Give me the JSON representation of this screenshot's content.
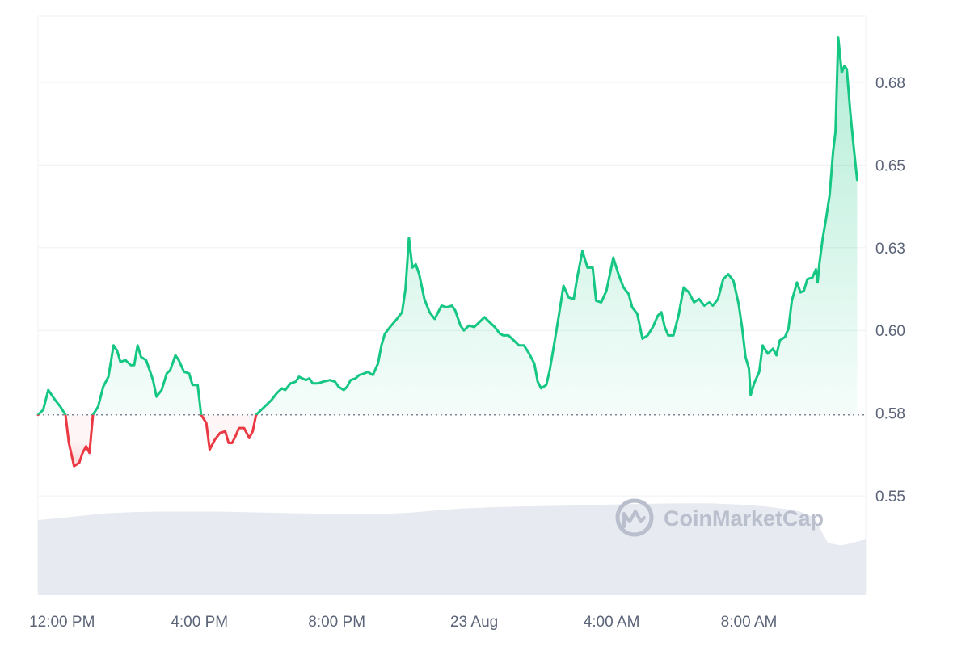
{
  "watermark": {
    "text": "CoinMarketCap",
    "icon": "coinmarketcap-logo-icon"
  },
  "colors": {
    "up": "#16c784",
    "down": "#ea3943",
    "grid": "#eef0f3",
    "baseline": "#7d8595",
    "volume": "#e7eaf0",
    "axis_text": "#5b6478"
  },
  "chart_data": {
    "type": "area",
    "title": "",
    "xlabel": "",
    "ylabel": "",
    "ylim": [
      0.52,
      0.695
    ],
    "y_ticks": [
      "0.55",
      "0.58",
      "0.60",
      "0.63",
      "0.65",
      "0.68"
    ],
    "y_tick_values": [
      0.55,
      0.575,
      0.6,
      0.625,
      0.65,
      0.675
    ],
    "x_ticks": [
      "12:00 PM",
      "4:00 PM",
      "8:00 PM",
      "23 Aug",
      "4:00 AM",
      "8:00 AM"
    ],
    "x_tick_hours": [
      12,
      16,
      20,
      24,
      28,
      32
    ],
    "x_range_hours": [
      11.3,
      35.4
    ],
    "baseline": 0.5745,
    "grid": true,
    "series": [
      {
        "type": "line",
        "points": [
          [
            11.3,
            0.5745
          ],
          [
            11.45,
            0.576
          ],
          [
            11.6,
            0.582
          ],
          [
            11.8,
            0.579
          ],
          [
            11.95,
            0.577
          ],
          [
            12.1,
            0.5745
          ],
          [
            12.2,
            0.566
          ],
          [
            12.35,
            0.559
          ],
          [
            12.5,
            0.56
          ],
          [
            12.6,
            0.563
          ],
          [
            12.7,
            0.565
          ],
          [
            12.8,
            0.563
          ],
          [
            12.9,
            0.5745
          ],
          [
            13.05,
            0.577
          ],
          [
            13.2,
            0.583
          ],
          [
            13.35,
            0.586
          ],
          [
            13.5,
            0.5955
          ],
          [
            13.6,
            0.594
          ],
          [
            13.7,
            0.5905
          ],
          [
            13.85,
            0.591
          ],
          [
            14.0,
            0.5895
          ],
          [
            14.1,
            0.5895
          ],
          [
            14.2,
            0.5955
          ],
          [
            14.3,
            0.592
          ],
          [
            14.45,
            0.591
          ],
          [
            14.55,
            0.588
          ],
          [
            14.65,
            0.585
          ],
          [
            14.75,
            0.58
          ],
          [
            14.9,
            0.582
          ],
          [
            15.05,
            0.587
          ],
          [
            15.15,
            0.588
          ],
          [
            15.3,
            0.5925
          ],
          [
            15.4,
            0.591
          ],
          [
            15.55,
            0.5875
          ],
          [
            15.7,
            0.587
          ],
          [
            15.8,
            0.5835
          ],
          [
            15.95,
            0.5835
          ],
          [
            16.05,
            0.5745
          ],
          [
            16.2,
            0.572
          ],
          [
            16.3,
            0.564
          ],
          [
            16.45,
            0.567
          ],
          [
            16.6,
            0.569
          ],
          [
            16.75,
            0.5695
          ],
          [
            16.85,
            0.566
          ],
          [
            16.95,
            0.566
          ],
          [
            17.05,
            0.568
          ],
          [
            17.15,
            0.5705
          ],
          [
            17.3,
            0.5705
          ],
          [
            17.45,
            0.5675
          ],
          [
            17.55,
            0.5695
          ],
          [
            17.65,
            0.5745
          ],
          [
            17.8,
            0.576
          ],
          [
            17.95,
            0.5775
          ],
          [
            18.1,
            0.579
          ],
          [
            18.25,
            0.581
          ],
          [
            18.4,
            0.5825
          ],
          [
            18.5,
            0.582
          ],
          [
            18.65,
            0.584
          ],
          [
            18.8,
            0.5845
          ],
          [
            18.9,
            0.586
          ],
          [
            19.1,
            0.585
          ],
          [
            19.2,
            0.5855
          ],
          [
            19.3,
            0.584
          ],
          [
            19.45,
            0.584
          ],
          [
            19.6,
            0.5845
          ],
          [
            19.8,
            0.585
          ],
          [
            19.95,
            0.5845
          ],
          [
            20.05,
            0.583
          ],
          [
            20.2,
            0.582
          ],
          [
            20.3,
            0.583
          ],
          [
            20.4,
            0.585
          ],
          [
            20.55,
            0.5855
          ],
          [
            20.65,
            0.5865
          ],
          [
            20.8,
            0.587
          ],
          [
            20.9,
            0.5875
          ],
          [
            21.05,
            0.5865
          ],
          [
            21.2,
            0.59
          ],
          [
            21.3,
            0.5955
          ],
          [
            21.4,
            0.599
          ],
          [
            21.55,
            0.601
          ],
          [
            21.75,
            0.6035
          ],
          [
            21.9,
            0.6055
          ],
          [
            22.0,
            0.6125
          ],
          [
            22.1,
            0.628
          ],
          [
            22.2,
            0.619
          ],
          [
            22.3,
            0.62
          ],
          [
            22.4,
            0.617
          ],
          [
            22.55,
            0.6095
          ],
          [
            22.7,
            0.6055
          ],
          [
            22.85,
            0.6035
          ],
          [
            22.95,
            0.6055
          ],
          [
            23.05,
            0.6075
          ],
          [
            23.2,
            0.607
          ],
          [
            23.35,
            0.6075
          ],
          [
            23.45,
            0.606
          ],
          [
            23.6,
            0.6015
          ],
          [
            23.7,
            0.6
          ],
          [
            23.85,
            0.6015
          ],
          [
            24.0,
            0.601
          ],
          [
            24.15,
            0.6025
          ],
          [
            24.3,
            0.604
          ],
          [
            24.45,
            0.6025
          ],
          [
            24.6,
            0.601
          ],
          [
            24.75,
            0.599
          ],
          [
            24.85,
            0.5985
          ],
          [
            25.0,
            0.5985
          ],
          [
            25.15,
            0.597
          ],
          [
            25.3,
            0.5955
          ],
          [
            25.45,
            0.5955
          ],
          [
            25.6,
            0.593
          ],
          [
            25.75,
            0.59
          ],
          [
            25.85,
            0.5845
          ],
          [
            25.95,
            0.5825
          ],
          [
            26.1,
            0.5835
          ],
          [
            26.2,
            0.588
          ],
          [
            26.3,
            0.594
          ],
          [
            26.45,
            0.6035
          ],
          [
            26.6,
            0.6135
          ],
          [
            26.75,
            0.61
          ],
          [
            26.9,
            0.6095
          ],
          [
            27.0,
            0.616
          ],
          [
            27.15,
            0.624
          ],
          [
            27.3,
            0.619
          ],
          [
            27.45,
            0.619
          ],
          [
            27.55,
            0.609
          ],
          [
            27.7,
            0.6085
          ],
          [
            27.85,
            0.612
          ],
          [
            27.95,
            0.617
          ],
          [
            28.05,
            0.622
          ],
          [
            28.2,
            0.617
          ],
          [
            28.35,
            0.613
          ],
          [
            28.5,
            0.611
          ],
          [
            28.6,
            0.607
          ],
          [
            28.75,
            0.605
          ],
          [
            28.9,
            0.5975
          ],
          [
            29.05,
            0.5985
          ],
          [
            29.2,
            0.601
          ],
          [
            29.35,
            0.6045
          ],
          [
            29.45,
            0.6055
          ],
          [
            29.55,
            0.601
          ],
          [
            29.65,
            0.5985
          ],
          [
            29.8,
            0.5985
          ],
          [
            29.95,
            0.6045
          ],
          [
            30.1,
            0.613
          ],
          [
            30.25,
            0.6115
          ],
          [
            30.4,
            0.6085
          ],
          [
            30.55,
            0.6095
          ],
          [
            30.7,
            0.6075
          ],
          [
            30.85,
            0.6085
          ],
          [
            30.95,
            0.6075
          ],
          [
            31.1,
            0.6095
          ],
          [
            31.25,
            0.6155
          ],
          [
            31.4,
            0.617
          ],
          [
            31.55,
            0.615
          ],
          [
            31.7,
            0.608
          ],
          [
            31.8,
            0.601
          ],
          [
            31.9,
            0.592
          ],
          [
            32.0,
            0.5885
          ],
          [
            32.05,
            0.5805
          ],
          [
            32.15,
            0.584
          ],
          [
            32.3,
            0.5875
          ],
          [
            32.4,
            0.5955
          ],
          [
            32.55,
            0.593
          ],
          [
            32.7,
            0.5945
          ],
          [
            32.8,
            0.5925
          ],
          [
            32.9,
            0.597
          ],
          [
            33.05,
            0.598
          ],
          [
            33.15,
            0.6005
          ],
          [
            33.25,
            0.609
          ],
          [
            33.4,
            0.6145
          ],
          [
            33.5,
            0.6115
          ],
          [
            33.6,
            0.612
          ],
          [
            33.7,
            0.6155
          ],
          [
            33.85,
            0.616
          ],
          [
            33.95,
            0.6185
          ],
          [
            34.0,
            0.6145
          ],
          [
            34.05,
            0.62
          ],
          [
            34.15,
            0.628
          ],
          [
            34.25,
            0.634
          ],
          [
            34.35,
            0.641
          ],
          [
            34.45,
            0.654
          ],
          [
            34.52,
            0.66
          ],
          [
            34.6,
            0.6885
          ],
          [
            34.7,
            0.678
          ],
          [
            34.78,
            0.68
          ],
          [
            34.85,
            0.679
          ],
          [
            34.95,
            0.666
          ],
          [
            35.05,
            0.6555
          ],
          [
            35.15,
            0.6455
          ]
        ]
      },
      {
        "type": "volume",
        "points": [
          [
            11.3,
            0.31
          ],
          [
            11.9,
            0.318
          ],
          [
            12.6,
            0.328
          ],
          [
            13.3,
            0.338
          ],
          [
            14.1,
            0.343
          ],
          [
            14.9,
            0.345
          ],
          [
            15.7,
            0.345
          ],
          [
            16.5,
            0.345
          ],
          [
            17.3,
            0.343
          ],
          [
            18.1,
            0.34
          ],
          [
            18.9,
            0.338
          ],
          [
            19.7,
            0.336
          ],
          [
            20.5,
            0.335
          ],
          [
            21.3,
            0.335
          ],
          [
            22.1,
            0.34
          ],
          [
            22.9,
            0.35
          ],
          [
            23.7,
            0.358
          ],
          [
            24.5,
            0.363
          ],
          [
            25.3,
            0.366
          ],
          [
            26.1,
            0.368
          ],
          [
            26.9,
            0.37
          ],
          [
            27.7,
            0.373
          ],
          [
            28.5,
            0.376
          ],
          [
            29.3,
            0.378
          ],
          [
            30.1,
            0.379
          ],
          [
            30.9,
            0.379
          ],
          [
            31.7,
            0.374
          ],
          [
            32.5,
            0.366
          ],
          [
            33.1,
            0.355
          ],
          [
            33.5,
            0.345
          ],
          [
            33.9,
            0.32
          ],
          [
            34.3,
            0.215
          ],
          [
            34.7,
            0.205
          ],
          [
            35.4,
            0.23
          ]
        ]
      }
    ]
  }
}
